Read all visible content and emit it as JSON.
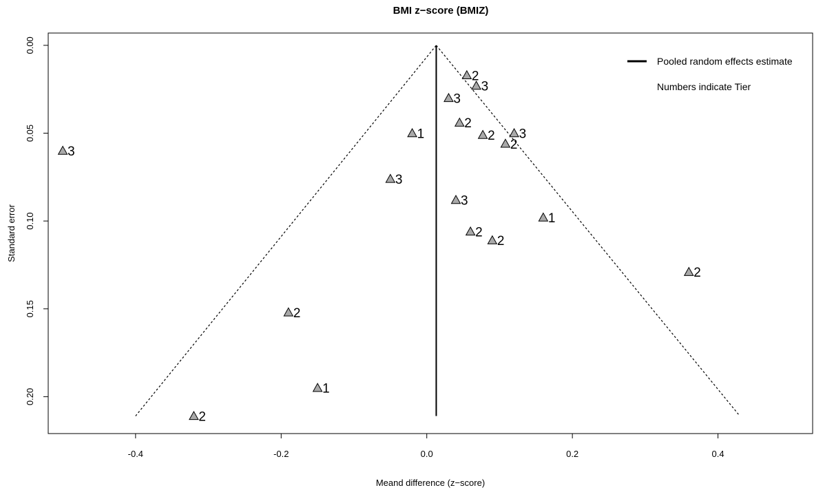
{
  "chart_data": {
    "type": "scatter",
    "title": "BMI z−score (BMIZ)",
    "xlabel": "Meand difference (z−score)",
    "ylabel": "Standard error",
    "xlim": [
      -0.52,
      0.53
    ],
    "ylim": [
      0.221,
      -0.007
    ],
    "y_axis_inverted": true,
    "x_ticks": [
      -0.4,
      -0.2,
      0.0,
      0.2,
      0.4
    ],
    "x_tick_labels": [
      "-0.4",
      "-0.2",
      "0.0",
      "0.2",
      "0.4"
    ],
    "y_ticks": [
      0.0,
      0.05,
      0.1,
      0.15,
      0.2
    ],
    "y_tick_labels": [
      "0.00",
      "0.05",
      "0.10",
      "0.15",
      "0.20"
    ],
    "pooled_estimate": 0.013,
    "funnel": {
      "apex": [
        0.013,
        0.0
      ],
      "bottom_left": [
        -0.4,
        0.211
      ],
      "bottom_right": [
        0.43,
        0.211
      ]
    },
    "grid": false,
    "marker": "triangle",
    "marker_color": "#a9a9a9",
    "points": [
      {
        "x": -0.5,
        "y": 0.06,
        "label": "3"
      },
      {
        "x": -0.32,
        "y": 0.211,
        "label": "2"
      },
      {
        "x": -0.19,
        "y": 0.152,
        "label": "2"
      },
      {
        "x": -0.15,
        "y": 0.195,
        "label": "1"
      },
      {
        "x": -0.05,
        "y": 0.076,
        "label": "3"
      },
      {
        "x": -0.02,
        "y": 0.05,
        "label": "1"
      },
      {
        "x": 0.03,
        "y": 0.03,
        "label": "3"
      },
      {
        "x": 0.04,
        "y": 0.088,
        "label": "3"
      },
      {
        "x": 0.045,
        "y": 0.044,
        "label": "2"
      },
      {
        "x": 0.055,
        "y": 0.017,
        "label": "2"
      },
      {
        "x": 0.06,
        "y": 0.106,
        "label": "2"
      },
      {
        "x": 0.068,
        "y": 0.023,
        "label": "3"
      },
      {
        "x": 0.077,
        "y": 0.051,
        "label": "2"
      },
      {
        "x": 0.09,
        "y": 0.111,
        "label": "2"
      },
      {
        "x": 0.108,
        "y": 0.056,
        "label": "2"
      },
      {
        "x": 0.12,
        "y": 0.05,
        "label": "3"
      },
      {
        "x": 0.16,
        "y": 0.098,
        "label": "1"
      },
      {
        "x": 0.36,
        "y": 0.129,
        "label": "2"
      }
    ],
    "legend": {
      "position": "top-right",
      "entries": [
        "Pooled random effects estimate",
        "Numbers indicate Tier"
      ]
    }
  }
}
